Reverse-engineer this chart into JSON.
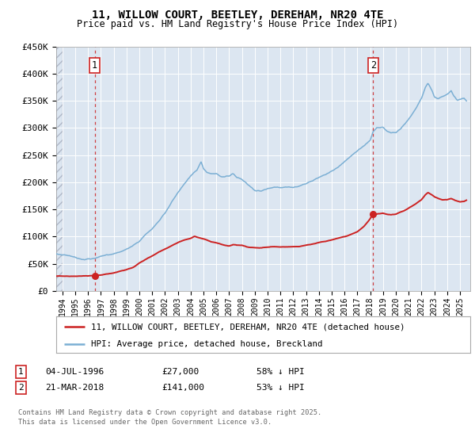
{
  "title": "11, WILLOW COURT, BEETLEY, DEREHAM, NR20 4TE",
  "subtitle": "Price paid vs. HM Land Registry's House Price Index (HPI)",
  "ylim": [
    0,
    450000
  ],
  "xlim_start": 1993.5,
  "xlim_end": 2025.8,
  "yticks": [
    0,
    50000,
    100000,
    150000,
    200000,
    250000,
    300000,
    350000,
    400000,
    450000
  ],
  "ytick_labels": [
    "£0",
    "£50K",
    "£100K",
    "£150K",
    "£200K",
    "£250K",
    "£300K",
    "£350K",
    "£400K",
    "£450K"
  ],
  "background_color": "#ffffff",
  "plot_bg_color": "#dce6f1",
  "grid_color": "#ffffff",
  "hpi_color": "#7bafd4",
  "price_color": "#cc2222",
  "transaction1_date": 1996.51,
  "transaction1_price": 27000,
  "transaction1_label": "1",
  "transaction2_date": 2018.22,
  "transaction2_price": 141000,
  "transaction2_label": "2",
  "legend_label_red": "11, WILLOW COURT, BEETLEY, DEREHAM, NR20 4TE (detached house)",
  "legend_label_blue": "HPI: Average price, detached house, Breckland",
  "copyright": "Contains HM Land Registry data © Crown copyright and database right 2025.\nThis data is licensed under the Open Government Licence v3.0.",
  "hpi_anchors": [
    [
      1993.5,
      68000
    ],
    [
      1994.0,
      67000
    ],
    [
      1994.5,
      66000
    ],
    [
      1995.0,
      63000
    ],
    [
      1995.5,
      61000
    ],
    [
      1996.0,
      62000
    ],
    [
      1996.5,
      63000
    ],
    [
      1997.0,
      66000
    ],
    [
      1997.5,
      69000
    ],
    [
      1998.0,
      72000
    ],
    [
      1998.5,
      75000
    ],
    [
      1999.0,
      80000
    ],
    [
      1999.5,
      87000
    ],
    [
      2000.0,
      95000
    ],
    [
      2000.5,
      108000
    ],
    [
      2001.0,
      118000
    ],
    [
      2001.5,
      132000
    ],
    [
      2002.0,
      148000
    ],
    [
      2002.5,
      168000
    ],
    [
      2003.0,
      185000
    ],
    [
      2003.5,
      200000
    ],
    [
      2004.0,
      215000
    ],
    [
      2004.5,
      225000
    ],
    [
      2004.8,
      238000
    ],
    [
      2005.0,
      225000
    ],
    [
      2005.3,
      218000
    ],
    [
      2005.6,
      215000
    ],
    [
      2006.0,
      215000
    ],
    [
      2006.3,
      210000
    ],
    [
      2006.6,
      208000
    ],
    [
      2007.0,
      210000
    ],
    [
      2007.3,
      215000
    ],
    [
      2007.6,
      208000
    ],
    [
      2008.0,
      205000
    ],
    [
      2008.5,
      195000
    ],
    [
      2009.0,
      185000
    ],
    [
      2009.5,
      185000
    ],
    [
      2010.0,
      190000
    ],
    [
      2010.5,
      192000
    ],
    [
      2011.0,
      192000
    ],
    [
      2011.5,
      195000
    ],
    [
      2012.0,
      193000
    ],
    [
      2012.5,
      195000
    ],
    [
      2013.0,
      200000
    ],
    [
      2013.5,
      205000
    ],
    [
      2014.0,
      210000
    ],
    [
      2014.5,
      215000
    ],
    [
      2015.0,
      222000
    ],
    [
      2015.5,
      230000
    ],
    [
      2016.0,
      240000
    ],
    [
      2016.5,
      250000
    ],
    [
      2017.0,
      260000
    ],
    [
      2017.5,
      270000
    ],
    [
      2018.0,
      280000
    ],
    [
      2018.22,
      295000
    ],
    [
      2018.5,
      302000
    ],
    [
      2019.0,
      305000
    ],
    [
      2019.3,
      298000
    ],
    [
      2019.6,
      295000
    ],
    [
      2020.0,
      295000
    ],
    [
      2020.5,
      305000
    ],
    [
      2021.0,
      318000
    ],
    [
      2021.5,
      335000
    ],
    [
      2022.0,
      355000
    ],
    [
      2022.3,
      375000
    ],
    [
      2022.5,
      383000
    ],
    [
      2022.8,
      370000
    ],
    [
      2023.0,
      358000
    ],
    [
      2023.3,
      355000
    ],
    [
      2023.6,
      358000
    ],
    [
      2024.0,
      362000
    ],
    [
      2024.3,
      368000
    ],
    [
      2024.5,
      358000
    ],
    [
      2024.8,
      350000
    ],
    [
      2025.0,
      352000
    ],
    [
      2025.3,
      355000
    ],
    [
      2025.5,
      350000
    ]
  ],
  "price_anchors": [
    [
      1993.5,
      27000
    ],
    [
      1994.0,
      27000
    ],
    [
      1995.0,
      27000
    ],
    [
      1996.0,
      27000
    ],
    [
      1996.51,
      27000
    ],
    [
      1997.0,
      28500
    ],
    [
      1997.5,
      30000
    ],
    [
      1998.0,
      32000
    ],
    [
      1998.5,
      35000
    ],
    [
      1999.0,
      38000
    ],
    [
      1999.5,
      43000
    ],
    [
      2000.0,
      50000
    ],
    [
      2000.5,
      57000
    ],
    [
      2001.0,
      63000
    ],
    [
      2001.5,
      70000
    ],
    [
      2002.0,
      76000
    ],
    [
      2002.5,
      82000
    ],
    [
      2003.0,
      88000
    ],
    [
      2003.5,
      93000
    ],
    [
      2004.0,
      96000
    ],
    [
      2004.3,
      100000
    ],
    [
      2004.6,
      98000
    ],
    [
      2005.0,
      96000
    ],
    [
      2005.3,
      93000
    ],
    [
      2005.6,
      90000
    ],
    [
      2006.0,
      88000
    ],
    [
      2006.3,
      86000
    ],
    [
      2006.6,
      84000
    ],
    [
      2007.0,
      83000
    ],
    [
      2007.3,
      85000
    ],
    [
      2007.6,
      84000
    ],
    [
      2008.0,
      83000
    ],
    [
      2008.5,
      80000
    ],
    [
      2009.0,
      79000
    ],
    [
      2009.5,
      79000
    ],
    [
      2010.0,
      80000
    ],
    [
      2010.5,
      81000
    ],
    [
      2011.0,
      80000
    ],
    [
      2011.5,
      80000
    ],
    [
      2012.0,
      80000
    ],
    [
      2012.5,
      81000
    ],
    [
      2013.0,
      83000
    ],
    [
      2013.5,
      85000
    ],
    [
      2014.0,
      88000
    ],
    [
      2014.5,
      90000
    ],
    [
      2015.0,
      93000
    ],
    [
      2015.5,
      96000
    ],
    [
      2016.0,
      99000
    ],
    [
      2016.5,
      103000
    ],
    [
      2017.0,
      108000
    ],
    [
      2017.5,
      118000
    ],
    [
      2018.0,
      132000
    ],
    [
      2018.22,
      141000
    ],
    [
      2018.5,
      140000
    ],
    [
      2019.0,
      142000
    ],
    [
      2019.3,
      140000
    ],
    [
      2019.6,
      139000
    ],
    [
      2020.0,
      140000
    ],
    [
      2020.5,
      145000
    ],
    [
      2021.0,
      152000
    ],
    [
      2021.5,
      160000
    ],
    [
      2022.0,
      168000
    ],
    [
      2022.3,
      177000
    ],
    [
      2022.5,
      181000
    ],
    [
      2022.8,
      177000
    ],
    [
      2023.0,
      173000
    ],
    [
      2023.3,
      170000
    ],
    [
      2023.6,
      168000
    ],
    [
      2024.0,
      168000
    ],
    [
      2024.3,
      170000
    ],
    [
      2024.5,
      168000
    ],
    [
      2024.8,
      165000
    ],
    [
      2025.0,
      164000
    ],
    [
      2025.3,
      165000
    ],
    [
      2025.5,
      167000
    ]
  ]
}
